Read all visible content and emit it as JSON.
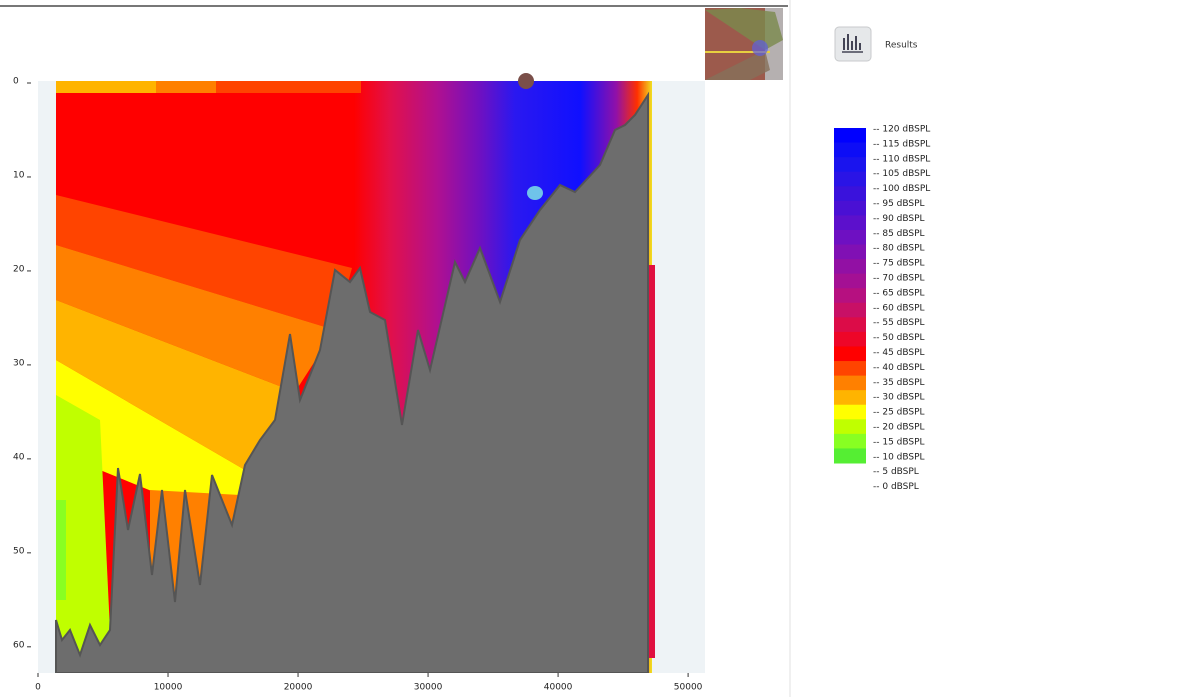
{
  "header": {
    "results_label": "Results"
  },
  "plot": {
    "xlim": [
      0,
      51300
    ],
    "ylim": [
      0,
      63
    ],
    "xticks": [
      0,
      10000,
      20000,
      30000,
      40000,
      50000
    ],
    "yticks": [
      0,
      10,
      20,
      30,
      40,
      50,
      60
    ]
  },
  "legend": [
    {
      "label": "-- 120 dBSPL",
      "color": "#0000ff"
    },
    {
      "label": "-- 115 dBSPL",
      "color": "#0d0df6"
    },
    {
      "label": "-- 110 dBSPL",
      "color": "#1a14ee"
    },
    {
      "label": "-- 105 dBSPL",
      "color": "#2a14e6"
    },
    {
      "label": "-- 100 dBSPL",
      "color": "#3a12dc"
    },
    {
      "label": "-- 95 dBSPL",
      "color": "#4a10d4"
    },
    {
      "label": "-- 90 dBSPL",
      "color": "#5c10cc"
    },
    {
      "label": "-- 85 dBSPL",
      "color": "#6e10c2"
    },
    {
      "label": "-- 80 dBSPL",
      "color": "#8010b4"
    },
    {
      "label": "-- 75 dBSPL",
      "color": "#9210a4"
    },
    {
      "label": "-- 70 dBSPL",
      "color": "#a41094"
    },
    {
      "label": "-- 65 dBSPL",
      "color": "#b61080"
    },
    {
      "label": "-- 60 dBSPL",
      "color": "#c81066"
    },
    {
      "label": "-- 55 dBSPL",
      "color": "#dc0c48"
    },
    {
      "label": "-- 50 dBSPL",
      "color": "#ee0628"
    },
    {
      "label": "-- 45 dBSPL",
      "color": "#ff0000"
    },
    {
      "label": "-- 40 dBSPL",
      "color": "#ff4400"
    },
    {
      "label": "-- 35 dBSPL",
      "color": "#ff8000"
    },
    {
      "label": "-- 30 dBSPL",
      "color": "#ffb400"
    },
    {
      "label": "-- 25 dBSPL",
      "color": "#ffff00"
    },
    {
      "label": "-- 20 dBSPL",
      "color": "#c0ff00"
    },
    {
      "label": "-- 15 dBSPL",
      "color": "#88ff22"
    },
    {
      "label": "-- 10 dBSPL",
      "color": "#55ee33"
    },
    {
      "label": "-- 5 dBSPL"
    },
    {
      "label": "-- 0 dBSPL"
    }
  ]
}
